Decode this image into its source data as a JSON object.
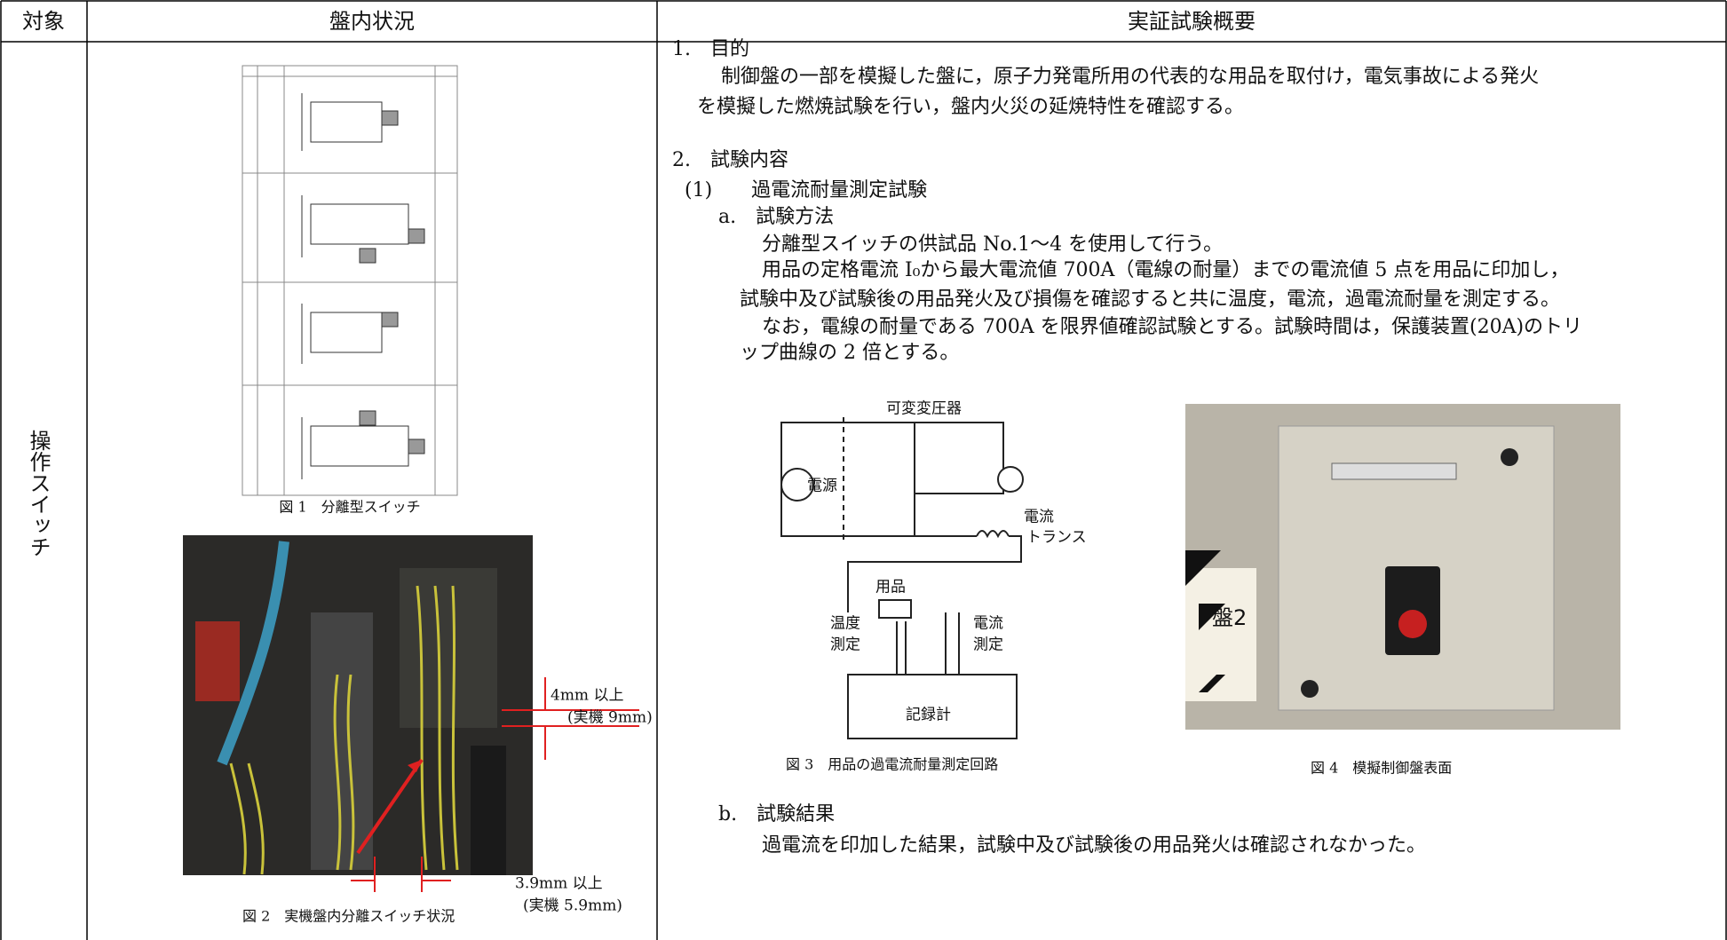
{
  "header": {
    "target": "対象",
    "panel": "盤内状況",
    "overview": "実証試験概要"
  },
  "row": {
    "target": "操作スイッチ",
    "figure1": {
      "caption": "図 1　分離型スイッチ"
    },
    "figure2": {
      "annotations": [
        "4mm 以上",
        "(実機 9mm)",
        "3.9mm 以上",
        "(実機 5.9mm)"
      ],
      "caption": "図 2　実機盤内分離スイッチ状況"
    },
    "lines": [
      "1.　目的",
      "制御盤の一部を模擬した盤に，原子力発電所用の代表的な用品を取付け，電気事故による発火",
      "を模擬した燃焼試験を行い，盤内火災の延焼特性を確認する。",
      "2.　試験内容",
      "(1)　　過電流耐量測定試験",
      "a.　試験方法",
      "分離型スイッチの供試品 No.1～4 を使用して行う。",
      "用品の定格電流 I₀から最大電流値 700A（電線の耐量）までの電流値 5 点を用品に印加し，",
      "試験中及び試験後の用品発火及び損傷を確認すると共に温度，電流，過電流耐量を測定する。",
      "なお，電線の耐量である 700A を限界値確認試験とする。試験時間は，保護装置(20A)のトリ",
      "ップ曲線の 2 倍とする。",
      "b.　試験結果",
      "過電流を印加した結果，試験中及び試験後の用品発火は確認されなかった。"
    ],
    "figure3": {
      "labels": [
        "可変変圧器",
        "電源",
        "電流",
        "トランス",
        "用品",
        "温度",
        "測定",
        "電流",
        "測定",
        "記録計"
      ],
      "caption": "図 3　用品の過電流耐量測定回路"
    },
    "figure4": {
      "labels": [
        "盤2"
      ],
      "caption": "図 4　模擬制御盤表面"
    }
  }
}
